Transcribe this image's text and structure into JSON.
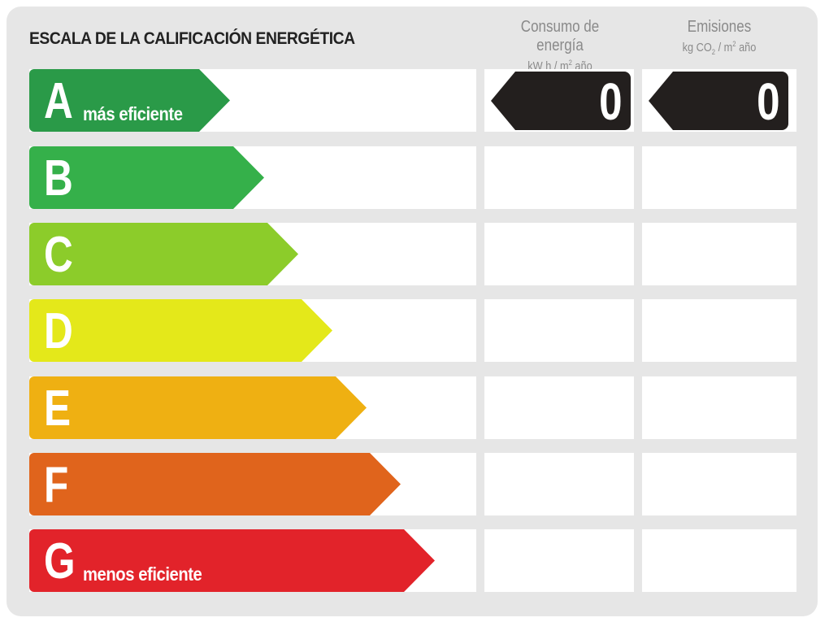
{
  "title": "ESCALA DE LA CALIFICACIÓN ENERGÉTICA",
  "columns": {
    "consumo": {
      "heading": "Consumo de energía",
      "unit_pre": "kW h / m",
      "unit_sup": "2",
      "unit_post": " año"
    },
    "emisiones": {
      "heading": "Emisiones",
      "unit_pre": "kg CO",
      "unit_sub": "2",
      "unit_mid": " / m",
      "unit_sup": "2",
      "unit_post": " año"
    }
  },
  "ratings": [
    {
      "letter": "A",
      "label": "más eficiente",
      "color": "#2a9a48"
    },
    {
      "letter": "B",
      "label": "",
      "color": "#35b04a"
    },
    {
      "letter": "C",
      "label": "",
      "color": "#8ccc2a"
    },
    {
      "letter": "D",
      "label": "",
      "color": "#e4e81a"
    },
    {
      "letter": "E",
      "label": "",
      "color": "#efb012"
    },
    {
      "letter": "F",
      "label": "",
      "color": "#e0641c"
    },
    {
      "letter": "G",
      "label": "menos eficiente",
      "color": "#e2232a"
    }
  ],
  "result": {
    "rating": "A",
    "consumo_value": "0",
    "emisiones_value": "0",
    "indicator_color": "#231f1e"
  }
}
